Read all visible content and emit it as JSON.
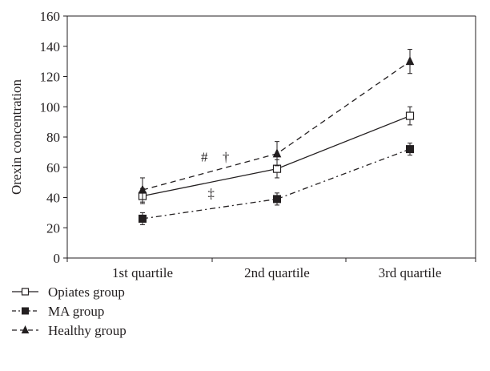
{
  "chart_data": {
    "type": "line",
    "title": "",
    "xlabel": "",
    "ylabel": "Orexin concentration",
    "categories": [
      "1st quartile",
      "2nd quartile",
      "3rd quartile"
    ],
    "ylim": [
      0,
      160
    ],
    "yticks": [
      0,
      20,
      40,
      60,
      80,
      100,
      120,
      140,
      160
    ],
    "grid": false,
    "legend_position": "bottom-left",
    "series": [
      {
        "name": "Opiates group",
        "values": [
          41,
          59,
          94
        ],
        "errors": [
          5,
          6,
          6
        ],
        "marker": "open-square",
        "line_style": "solid",
        "color": "#231f20"
      },
      {
        "name": "MA group",
        "values": [
          26,
          39,
          72
        ],
        "errors": [
          4,
          4,
          4
        ],
        "marker": "filled-square",
        "line_style": "dash-dot",
        "color": "#231f20"
      },
      {
        "name": "Healthy group",
        "values": [
          45,
          69,
          130
        ],
        "errors": [
          8,
          8,
          8
        ],
        "marker": "filled-triangle",
        "line_style": "dashed",
        "color": "#231f20"
      }
    ],
    "annotations": [
      {
        "text": "#",
        "x": 1.46,
        "y": 67
      },
      {
        "text": "†",
        "x": 1.62,
        "y": 67
      },
      {
        "text": "‡",
        "x": 1.51,
        "y": 43
      }
    ]
  }
}
